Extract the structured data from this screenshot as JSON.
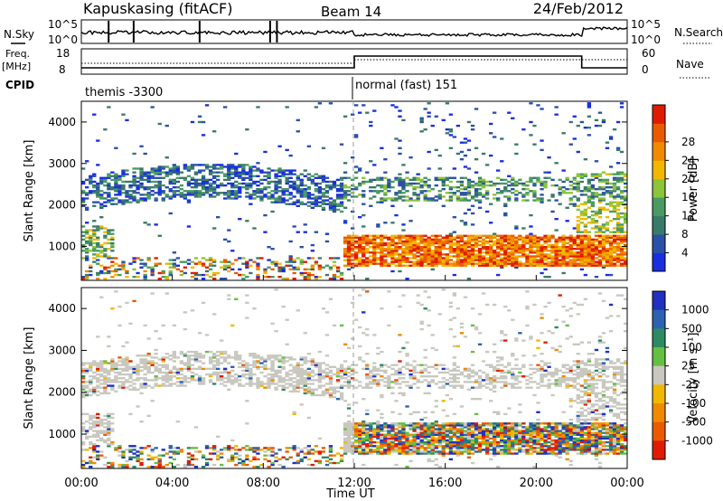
{
  "header": {
    "station": "Kapuskasing (fitACF)",
    "beam": "Beam 14",
    "date": "24/Feb/2012"
  },
  "top_panels": {
    "nsky_label": "N.Sky",
    "nsearch_label": "N.Search",
    "freq_label_line1": "Freq.",
    "freq_label_line2": "[MHz]",
    "nave_label": "Nave",
    "cpid_label": "CPID",
    "noise_ticks_left": [
      "10^5",
      "10^0"
    ],
    "noise_ticks_right": [
      "10^5",
      "10^0"
    ],
    "freq_ticks_left": [
      "18",
      "8"
    ],
    "freq_ticks_right": [
      "60",
      "0"
    ],
    "cpid_segments": [
      {
        "label": "themis -3300",
        "start_hour": 0,
        "end_hour": 12
      },
      {
        "label": "normal (fast) 151",
        "start_hour": 12,
        "end_hour": 24
      }
    ]
  },
  "chart_data": [
    {
      "type": "heatmap",
      "name": "power",
      "ylabel": "Slant Range [km]",
      "xlabel": "Time UT",
      "xlim": [
        0,
        24
      ],
      "ylim": [
        180,
        4500
      ],
      "y_ticks": [
        1000,
        2000,
        3000,
        4000
      ],
      "x_tick_labels": [
        "00:00",
        "04:00",
        "08:00",
        "12:00",
        "16:00",
        "20:00",
        "00:00"
      ],
      "colorbar": {
        "label": "Power [dB]",
        "ticks": [
          "4",
          "8",
          "12",
          "16",
          "20",
          "24",
          "28"
        ],
        "colors": [
          "#1a2ee0",
          "#2a50a8",
          "#3a7a6a",
          "#4a9a64",
          "#8cc43a",
          "#f2b800",
          "#f08a00",
          "#ea5a00",
          "#e01c00"
        ]
      },
      "features": [
        {
          "name": "ground scatter band",
          "hours": [
            12,
            22
          ],
          "range_km": [
            500,
            1250
          ],
          "dominant_level": "20-28 dB"
        },
        {
          "name": "arc echo",
          "hours": [
            0,
            11
          ],
          "range_km": [
            1500,
            2800
          ],
          "dominant_level": "4-12 dB"
        },
        {
          "name": "mid-range echo",
          "hours": [
            12.5,
            24
          ],
          "range_km": [
            2100,
            2600
          ],
          "dominant_level": "8-16 dB"
        }
      ]
    },
    {
      "type": "heatmap",
      "name": "velocity",
      "ylabel": "Slant Range [km]",
      "xlabel": "Time UT",
      "xlim": [
        0,
        24
      ],
      "ylim": [
        180,
        4500
      ],
      "y_ticks": [
        1000,
        2000,
        3000,
        4000
      ],
      "x_tick_labels": [
        "00:00",
        "04:00",
        "08:00",
        "12:00",
        "16:00",
        "20:00",
        "00:00"
      ],
      "colorbar": {
        "label": "Velocity [m s⁻¹]",
        "ticks": [
          "1000",
          "500",
          "100",
          "25",
          "-25",
          "-100",
          "-500",
          "-1000"
        ],
        "colors": [
          "#2030c0",
          "#2c62b0",
          "#2e8a62",
          "#64c040",
          "#c8c8c0",
          "#f2b800",
          "#f08a00",
          "#ea5a00",
          "#e01c00"
        ]
      }
    }
  ],
  "bottom_axis": {
    "title": "Time UT",
    "tick_labels": [
      "00:00",
      "04:00",
      "08:00",
      "12:00",
      "16:00",
      "20:00",
      "00:00"
    ]
  }
}
